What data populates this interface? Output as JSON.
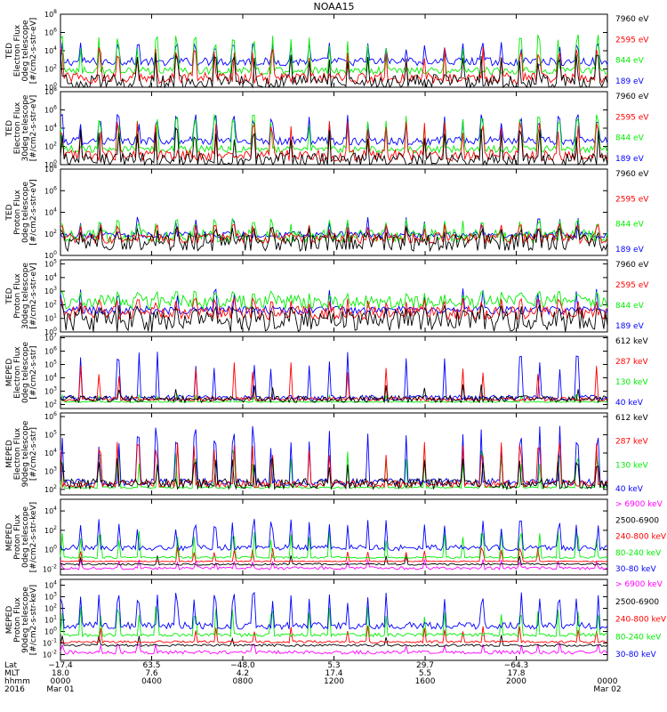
{
  "title": "NOAA15",
  "colors": {
    "blue": "#0000ff",
    "red": "#ff0000",
    "green": "#00ee00",
    "black": "#000000",
    "magenta": "#ff00ff"
  },
  "chart_data": [
    {
      "type": "line",
      "ylabel": [
        "TED",
        "Electron Flux",
        "0deg telescope",
        "[#/cm2-s-str-eV]"
      ],
      "ytick_exponents": [
        0,
        2,
        4,
        6,
        8
      ],
      "ylim_log10": [
        0,
        8
      ],
      "legend": [
        {
          "label": "7960 eV",
          "color": "black"
        },
        {
          "label": "2595 eV",
          "color": "red"
        },
        {
          "label": "844 eV",
          "color": "green"
        },
        {
          "label": "189 eV",
          "color": "blue"
        }
      ],
      "series": [
        {
          "color": "blue",
          "base": 2.8,
          "noise": 0.45,
          "spike": 5.0,
          "spikeRate": 0.9
        },
        {
          "color": "green",
          "base": 1.8,
          "noise": 0.4,
          "spike": 5.8,
          "spikeRate": 0.75
        },
        {
          "color": "red",
          "base": 1.0,
          "noise": 0.6,
          "spike": 4.5,
          "spikeRate": 0.7
        },
        {
          "color": "black",
          "base": 0.6,
          "noise": 0.8,
          "spike": 3.8,
          "spikeRate": 0.6
        }
      ]
    },
    {
      "type": "line",
      "ylabel": [
        "TED",
        "Electron Flux",
        "30deg telescope",
        "[#/cm2-s-str-eV]"
      ],
      "ytick_exponents": [
        0,
        2,
        4,
        6,
        8
      ],
      "ylim_log10": [
        0,
        8
      ],
      "legend": [
        {
          "label": "7960 eV",
          "color": "black"
        },
        {
          "label": "2595 eV",
          "color": "red"
        },
        {
          "label": "844 eV",
          "color": "green"
        },
        {
          "label": "189 eV",
          "color": "blue"
        }
      ],
      "series": [
        {
          "color": "blue",
          "base": 2.6,
          "noise": 0.45,
          "spike": 5.5,
          "spikeRate": 0.9
        },
        {
          "color": "green",
          "base": 1.7,
          "noise": 0.4,
          "spike": 5.6,
          "spikeRate": 0.75
        },
        {
          "color": "red",
          "base": 1.0,
          "noise": 0.6,
          "spike": 4.8,
          "spikeRate": 0.7
        },
        {
          "color": "black",
          "base": 0.5,
          "noise": 0.8,
          "spike": 4.0,
          "spikeRate": 0.6
        }
      ]
    },
    {
      "type": "line",
      "ylabel": [
        "TED",
        "Proton Flux",
        "0deg telescope",
        "[#/cm2-s-str-eV]"
      ],
      "ytick_exponents": [
        0,
        2,
        4,
        6,
        8
      ],
      "ylim_log10": [
        0,
        8
      ],
      "legend": [
        {
          "label": "7960 eV",
          "color": "black"
        },
        {
          "label": "2595 eV",
          "color": "red"
        },
        {
          "label": "844 eV",
          "color": "green"
        },
        {
          "label": "189 eV",
          "color": "blue"
        }
      ],
      "series": [
        {
          "color": "blue",
          "base": 1.9,
          "noise": 0.3,
          "spike": 3.6,
          "spikeRate": 0.4
        },
        {
          "color": "green",
          "base": 1.8,
          "noise": 0.6,
          "spike": 3.4,
          "spikeRate": 0.9
        },
        {
          "color": "red",
          "base": 1.6,
          "noise": 0.5,
          "spike": 2.9,
          "spikeRate": 0.8
        },
        {
          "color": "black",
          "base": 1.2,
          "noise": 0.8,
          "spike": 2.6,
          "spikeRate": 0.8
        }
      ]
    },
    {
      "type": "line",
      "ylabel": [
        "TED",
        "Proton Flux",
        "30deg telescope",
        "[#/cm2-s-str-eV]"
      ],
      "ytick_exponents": [
        0,
        1,
        2,
        3,
        4,
        5
      ],
      "ylim_log10": [
        0,
        5.3
      ],
      "legend": [
        {
          "label": "7960 eV",
          "color": "black"
        },
        {
          "label": "2595 eV",
          "color": "red"
        },
        {
          "label": "844 eV",
          "color": "green"
        },
        {
          "label": "189 eV",
          "color": "blue"
        }
      ],
      "series": [
        {
          "color": "blue",
          "base": 1.6,
          "noise": 0.3,
          "spike": 3.2,
          "spikeRate": 0.4
        },
        {
          "color": "green",
          "base": 2.2,
          "noise": 0.5,
          "spike": 3.0,
          "spikeRate": 0.9
        },
        {
          "color": "red",
          "base": 1.4,
          "noise": 0.5,
          "spike": 2.5,
          "spikeRate": 0.8
        },
        {
          "color": "black",
          "base": 0.8,
          "noise": 0.8,
          "spike": 2.0,
          "spikeRate": 0.8
        }
      ]
    },
    {
      "type": "line",
      "ylabel": [
        "MEPED",
        "Electron Flux",
        "0deg telescope",
        "[#/cm2-s-str]"
      ],
      "ytick_exponents": [
        2,
        3,
        4,
        5,
        6,
        7
      ],
      "ylim_log10": [
        1.7,
        7.1
      ],
      "legend": [
        {
          "label": "612 keV",
          "color": "black"
        },
        {
          "label": "287 keV",
          "color": "red"
        },
        {
          "label": "130 keV",
          "color": "green"
        },
        {
          "label": "40 keV",
          "color": "blue"
        }
      ],
      "series": [
        {
          "color": "green",
          "base": 2.2,
          "noise": 0.05,
          "spike": 2.8,
          "spikeRate": 0.2
        },
        {
          "color": "blue",
          "base": 2.5,
          "noise": 0.2,
          "spike": 6.0,
          "spikeRate": 0.45
        },
        {
          "color": "red",
          "base": 2.4,
          "noise": 0.15,
          "spike": 5.2,
          "spikeRate": 0.25
        },
        {
          "color": "black",
          "base": 2.4,
          "noise": 0.25,
          "spike": 3.5,
          "spikeRate": 0.3
        }
      ]
    },
    {
      "type": "line",
      "ylabel": [
        "MEPED",
        "Electron Flux",
        "90deg telescope",
        "[#/cm2-s-str]"
      ],
      "ytick_exponents": [
        2,
        3,
        4,
        5,
        6
      ],
      "ylim_log10": [
        1.7,
        6.2
      ],
      "legend": [
        {
          "label": "612 keV",
          "color": "black"
        },
        {
          "label": "287 keV",
          "color": "red"
        },
        {
          "label": "130 keV",
          "color": "green"
        },
        {
          "label": "40 keV",
          "color": "blue"
        }
      ],
      "series": [
        {
          "color": "green",
          "base": 2.1,
          "noise": 0.05,
          "spike": 4.2,
          "spikeRate": 0.7
        },
        {
          "color": "blue",
          "base": 2.4,
          "noise": 0.2,
          "spike": 5.5,
          "spikeRate": 0.75
        },
        {
          "color": "red",
          "base": 2.3,
          "noise": 0.2,
          "spike": 4.6,
          "spikeRate": 0.6
        },
        {
          "color": "black",
          "base": 2.3,
          "noise": 0.3,
          "spike": 3.8,
          "spikeRate": 0.5
        }
      ]
    },
    {
      "type": "line",
      "ylabel": [
        "MEPED",
        "Proton Flux",
        "0deg telescope",
        "[#/cm2-s-str-keV]"
      ],
      "ytick_exponents": [
        -2,
        0,
        2,
        4
      ],
      "ylim_log10": [
        -2.6,
        5.2
      ],
      "legend": [
        {
          "label": "> 6900 keV",
          "color": "magenta"
        },
        {
          "label": "2500-6900",
          "color": "black"
        },
        {
          "label": "240-800 keV",
          "color": "red"
        },
        {
          "label": "80-240 keV",
          "color": "green"
        },
        {
          "label": "30-80 keV",
          "color": "blue"
        }
      ],
      "series": [
        {
          "color": "magenta",
          "base": -1.9,
          "noise": 0.15,
          "spike": -1.0,
          "spikeRate": 0.3
        },
        {
          "color": "black",
          "base": -1.5,
          "noise": 0.1,
          "spike": -0.5,
          "spikeRate": 0.15
        },
        {
          "color": "red",
          "base": -1.2,
          "noise": 0.05,
          "spike": 0.3,
          "spikeRate": 0.3
        },
        {
          "color": "green",
          "base": -0.8,
          "noise": 0.1,
          "spike": 2.0,
          "spikeRate": 0.6
        },
        {
          "color": "blue",
          "base": 0.2,
          "noise": 0.3,
          "spike": 3.3,
          "spikeRate": 0.7
        }
      ]
    },
    {
      "type": "line",
      "ylabel": [
        "MEPED",
        "Proton Flux",
        "90deg telescope",
        "[#/cm2-s-str-keV]"
      ],
      "ytick_exponents": [
        -2,
        -1,
        0,
        1,
        2,
        3,
        4
      ],
      "ylim_log10": [
        -2.5,
        4.5
      ],
      "legend": [
        {
          "label": "> 6900 keV",
          "color": "magenta"
        },
        {
          "label": "2500-6900",
          "color": "black"
        },
        {
          "label": "240-800 keV",
          "color": "red"
        },
        {
          "label": "80-240 keV",
          "color": "green"
        },
        {
          "label": "30-80 keV",
          "color": "blue"
        }
      ],
      "series": [
        {
          "color": "magenta",
          "base": -1.8,
          "noise": 0.15,
          "spike": -1.0,
          "spikeRate": 0.3
        },
        {
          "color": "black",
          "base": -1.2,
          "noise": 0.1,
          "spike": -0.3,
          "spikeRate": 0.2
        },
        {
          "color": "red",
          "base": -0.9,
          "noise": 0.1,
          "spike": 0.5,
          "spikeRate": 0.35
        },
        {
          "color": "green",
          "base": -0.3,
          "noise": 0.15,
          "spike": 2.2,
          "spikeRate": 0.65
        },
        {
          "color": "blue",
          "base": 0.5,
          "noise": 0.3,
          "spike": 3.5,
          "spikeRate": 0.75
        }
      ]
    }
  ],
  "x_axis": {
    "row_labels": [
      "Lat",
      "MLT",
      "hhmm",
      "2016"
    ],
    "ticks": [
      {
        "lat": "−17.4",
        "mlt": "18.0",
        "hhmm": "0000",
        "date": "Mar 01",
        "frac": 0.0
      },
      {
        "lat": "63.5",
        "mlt": "7.6",
        "hhmm": "0400",
        "date": "",
        "frac": 0.1667
      },
      {
        "lat": "−48.0",
        "mlt": "4.2",
        "hhmm": "0800",
        "date": "",
        "frac": 0.3333
      },
      {
        "lat": "5.3",
        "mlt": "17.4",
        "hhmm": "1200",
        "date": "",
        "frac": 0.5
      },
      {
        "lat": "29.7",
        "mlt": "5.5",
        "hhmm": "1600",
        "date": "",
        "frac": 0.6667
      },
      {
        "lat": "−64.3",
        "mlt": "17.8",
        "hhmm": "2000",
        "date": "",
        "frac": 0.8333
      },
      {
        "lat": "",
        "mlt": "",
        "hhmm": "0000",
        "date": "Mar 02",
        "frac": 1.0
      }
    ]
  }
}
